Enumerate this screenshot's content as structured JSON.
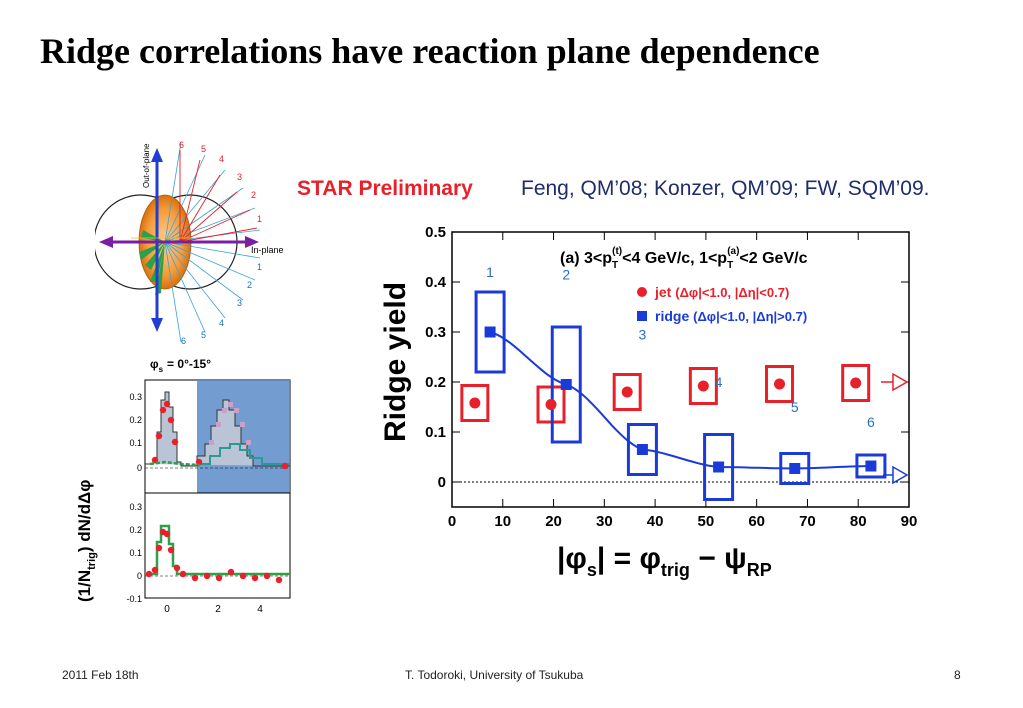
{
  "slide": {
    "title": "Ridge correlations have reaction plane dependence",
    "footer_date": "2011 Feb 18th",
    "footer_author": "T. Todoroki, University of Tsukuba",
    "page_number": "8"
  },
  "header": {
    "star_label": "STAR Preliminary",
    "refs": "Feng, QM’08; Konzer, QM’09; FW, SQM’09."
  },
  "diagram": {
    "out_of_plane_label": "Out-of-plane",
    "in_plane_label": "In-plane",
    "upper_numbers": [
      "6",
      "5",
      "4",
      "3",
      "2",
      "1"
    ],
    "lower_numbers": [
      "1",
      "2",
      "3",
      "4",
      "5",
      "6"
    ]
  },
  "small_plot": {
    "phi_label_prefix": "φ",
    "phi_label_sub": "s",
    "phi_range": "= 0°-15°",
    "ylabel": "(1/N",
    "ylabel_sub": "trig",
    "ylabel_tail": ") dN/dΔφ",
    "top_yticks": [
      "0.3",
      "0.2",
      "0.1",
      "0"
    ],
    "bottom_yticks": [
      "0.3",
      "0.2",
      "0.1",
      "0",
      "-0.1"
    ],
    "xticks": [
      "0",
      "2",
      "4"
    ]
  },
  "chart_data": {
    "type": "scatter",
    "panel_label": "(a) 3<p",
    "panel_label_t_sup": "(t)",
    "panel_label_t_sub": "T",
    "panel_label_mid": "<4 GeV/c, 1<p",
    "panel_label_a_sup": "(a)",
    "panel_label_a_sub": "T",
    "panel_label_end": "<2 GeV/c",
    "ylabel": "Ridge yield",
    "xlabel_main": "|φ",
    "xlabel_s": "s",
    "xlabel_mid": "| = φ",
    "xlabel_trig": "trig",
    "xlabel_psi": " − ψ",
    "xlabel_rp": "RP",
    "xlim": [
      0,
      90
    ],
    "ylim": [
      -0.05,
      0.5
    ],
    "xticks": [
      "0",
      "10",
      "20",
      "30",
      "40",
      "50",
      "60",
      "70",
      "80",
      "90"
    ],
    "yticks": [
      "0.5",
      "0.4",
      "0.3",
      "0.2",
      "0.1",
      "0"
    ],
    "bin_labels": [
      "1",
      "2",
      "3",
      "4",
      "5",
      "6"
    ],
    "series": [
      {
        "name": "jet (Δφ|<1.0, |Δη|<0.7)",
        "legend_prefix": "jet",
        "legend_text": "(Δφ|<1.0, |Δη|<0.7)",
        "color": "#e8202a",
        "x": [
          4.5,
          19.5,
          34.5,
          49.5,
          64.5,
          79.5
        ],
        "y": [
          0.158,
          0.155,
          0.18,
          0.192,
          0.196,
          0.198
        ]
      },
      {
        "name": "ridge (Δφ|<1.0, |Δη|>0.7)",
        "legend_prefix": "ridge",
        "legend_text": "(Δφ|<1.0, |Δη|>0.7)",
        "color": "#1a3bd8",
        "x": [
          7.5,
          22.5,
          37.5,
          52.5,
          67.5,
          82.5
        ],
        "y": [
          0.3,
          0.195,
          0.065,
          0.03,
          0.027,
          0.032
        ]
      }
    ]
  }
}
